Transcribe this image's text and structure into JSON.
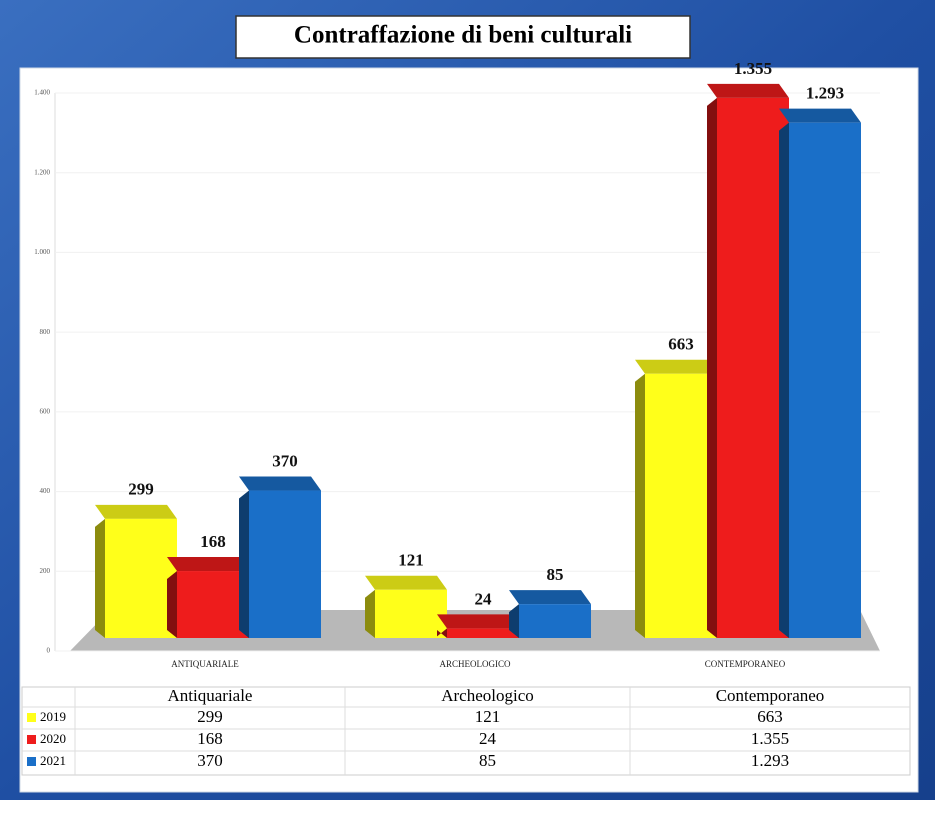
{
  "chart_data": {
    "type": "bar",
    "title": "Contraffazione di beni culturali",
    "categories": [
      "ANTIQUARIALE",
      "ARCHEOLOGICO",
      "CONTEMPORANEO"
    ],
    "table_categories": [
      "Antiquariale",
      "Archeologico",
      "Contemporaneo"
    ],
    "series": [
      {
        "name": "2019",
        "color": "#ffff1a",
        "values": [
          299,
          121,
          663
        ],
        "value_labels": [
          "299",
          "121",
          "663"
        ]
      },
      {
        "name": "2020",
        "color": "#ee1c1c",
        "values": [
          168,
          24,
          1355
        ],
        "value_labels": [
          "168",
          "24",
          "1.355"
        ]
      },
      {
        "name": "2021",
        "color": "#1a6fc8",
        "values": [
          370,
          85,
          1293
        ],
        "value_labels": [
          "370",
          "85",
          "1.293"
        ]
      }
    ],
    "ylim": [
      0,
      1400
    ],
    "yticks": [
      0,
      200,
      400,
      600,
      800,
      {
        "value": 1000,
        "label": "1.000"
      },
      {
        "value": 1200,
        "label": "1.200"
      },
      {
        "value": 1400,
        "label": "1.400"
      }
    ],
    "grid": true
  }
}
